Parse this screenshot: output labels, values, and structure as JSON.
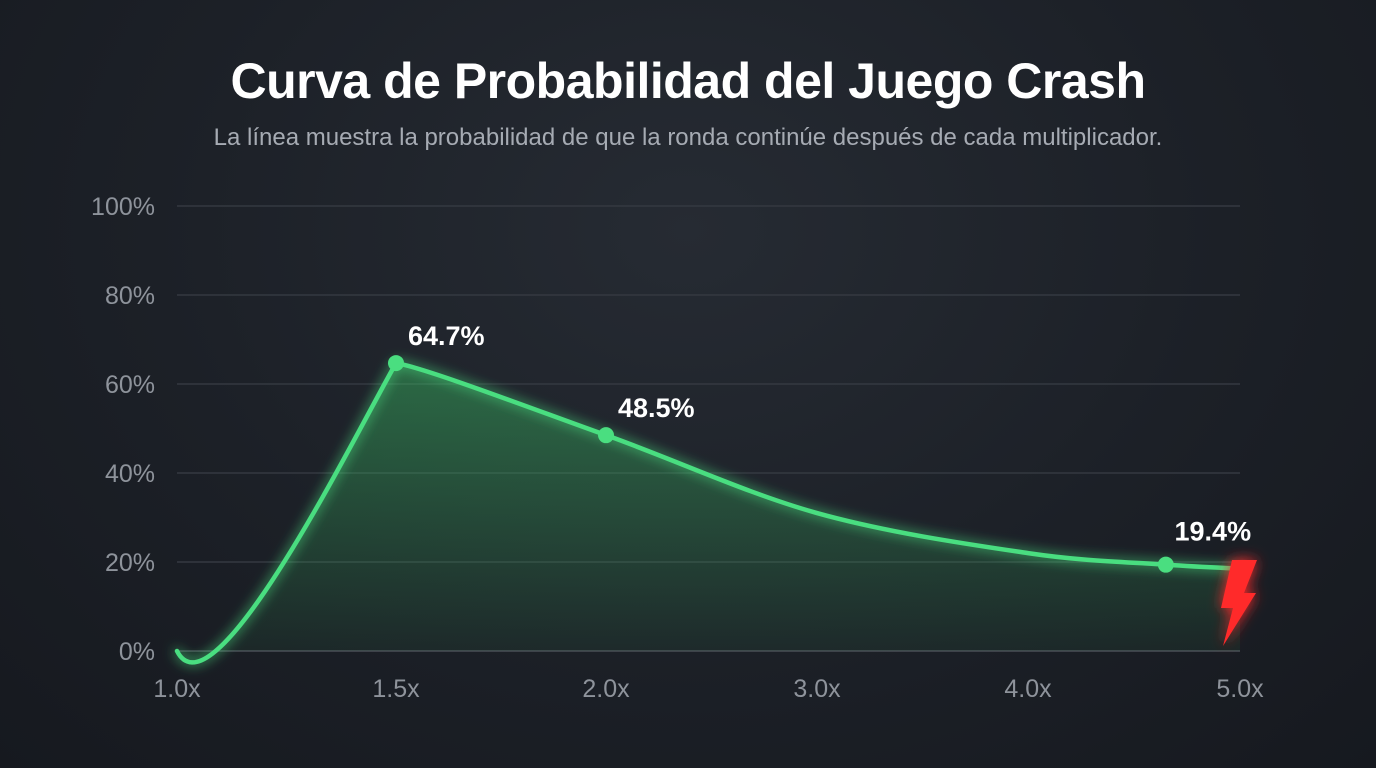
{
  "chart_data": {
    "type": "line",
    "title": "Curva de Probabilidad del Juego Crash",
    "subtitle": "La línea muestra la probabilidad de que la ronda continúe después de cada multiplicador.",
    "x_tick_labels": [
      "1.0x",
      "1.5x",
      "2.0x",
      "3.0x",
      "4.0x",
      "5.0x"
    ],
    "y_tick_labels": [
      "0%",
      "20%",
      "40%",
      "60%",
      "80%",
      "100%"
    ],
    "ylim": [
      0,
      100
    ],
    "grid": true,
    "series": [
      {
        "color": "#4ade80",
        "points": [
          {
            "x": 1.0,
            "y": 0
          },
          {
            "x": 1.5,
            "y": 64.7
          },
          {
            "x": 2.0,
            "y": 48.5
          },
          {
            "x": 3.0,
            "y": 31
          },
          {
            "x": 4.0,
            "y": 22
          },
          {
            "x": 4.65,
            "y": 19.4
          },
          {
            "x": 5.0,
            "y": 18.5
          }
        ],
        "markers": [
          {
            "x": 1.5,
            "y": 64.7,
            "label": "64.7%"
          },
          {
            "x": 2.0,
            "y": 48.5,
            "label": "48.5%"
          },
          {
            "x": 4.65,
            "y": 19.4,
            "label": "19.4%"
          }
        ]
      }
    ],
    "crash_marker": {
      "x": 5.0,
      "icon": "lightning-bolt-icon",
      "color": "#ff2b2b"
    }
  }
}
